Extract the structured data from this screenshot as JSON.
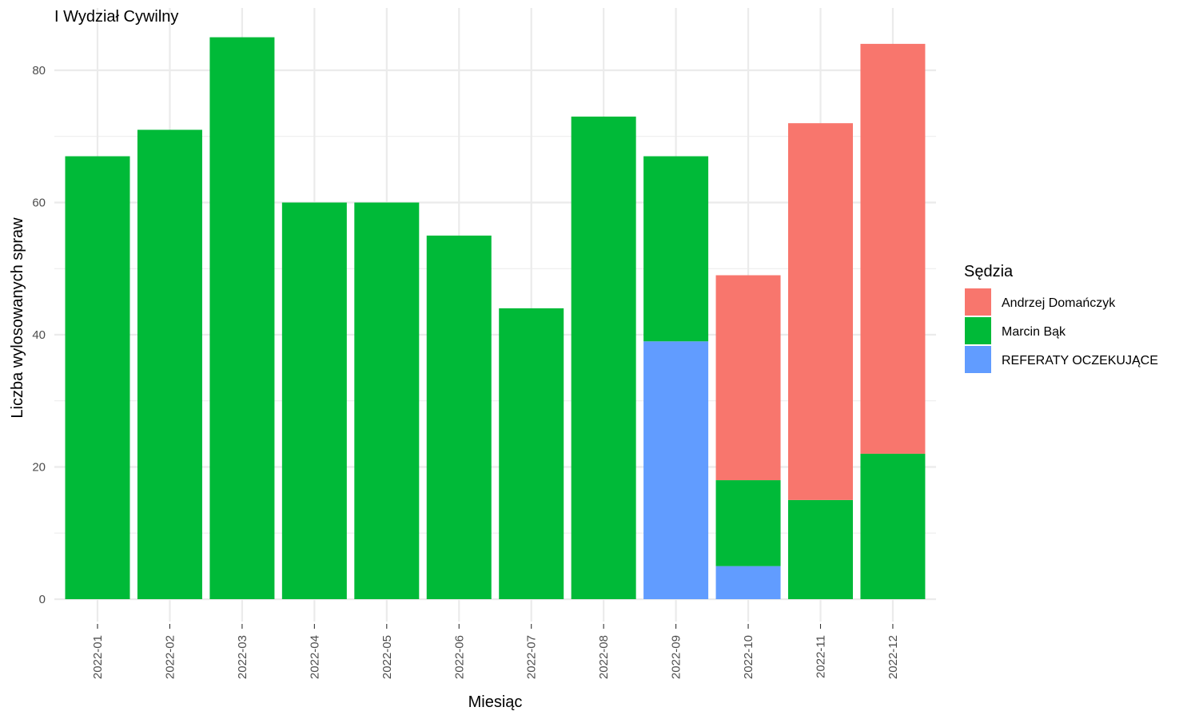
{
  "chart_data": {
    "type": "bar",
    "stacked": true,
    "title": "I Wydział Cywilny",
    "xlabel": "Miesiąc",
    "ylabel": "Liczba wylosowanych spraw",
    "ylim": [
      0,
      88
    ],
    "y_ticks": [
      0,
      20,
      40,
      60,
      80
    ],
    "grid": true,
    "legend_title": "Sędzia",
    "legend_position": "right",
    "categories": [
      "2022-01",
      "2022-02",
      "2022-03",
      "2022-04",
      "2022-05",
      "2022-06",
      "2022-07",
      "2022-08",
      "2022-09",
      "2022-10",
      "2022-11",
      "2022-12"
    ],
    "series": [
      {
        "name": "Andrzej Domańczyk",
        "color": "#F8766D",
        "values": [
          0,
          0,
          0,
          0,
          0,
          0,
          0,
          0,
          0,
          31,
          57,
          62
        ]
      },
      {
        "name": "Marcin Bąk",
        "color": "#00BA38",
        "values": [
          67,
          71,
          85,
          60,
          60,
          55,
          44,
          73,
          28,
          13,
          15,
          22
        ]
      },
      {
        "name": "REFERATY OCZEKUJĄCE",
        "color": "#619CFF",
        "values": [
          0,
          0,
          0,
          0,
          0,
          0,
          0,
          0,
          39,
          5,
          0,
          0
        ]
      }
    ]
  }
}
